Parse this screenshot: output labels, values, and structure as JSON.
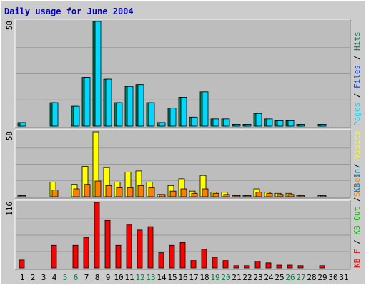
{
  "title": "Daily usage for June 2004",
  "colors": {
    "page_bg": "#cccccc",
    "plot_bg": "#bdbdbd",
    "title": "#0000cc",
    "hits": "#00805c",
    "files": "#0040ff",
    "pages": "#00d8ff",
    "visits": "#ffff00",
    "sites": "#ff8000",
    "kb_in": "#0080c0",
    "kb_out": "#00c000",
    "kb_f": "#ff0000",
    "weekend_day": "#008040",
    "weekday": "#000000"
  },
  "chart_data": [
    {
      "type": "bar",
      "panel": "top",
      "ymax_label": "58",
      "legend": [
        {
          "key": "pages",
          "text": "Pages"
        },
        {
          "key": "sep",
          "text": " / "
        },
        {
          "key": "files",
          "text": "Files"
        },
        {
          "key": "sep",
          "text": " / "
        },
        {
          "key": "hits",
          "text": "Hits"
        }
      ],
      "ylim": [
        0,
        58
      ],
      "series": [
        {
          "name": "Hits",
          "values": [
            2,
            0,
            0,
            13,
            0,
            11,
            27,
            58,
            26,
            13,
            22,
            23,
            13,
            2,
            10,
            16,
            5,
            19,
            4,
            4,
            1,
            1,
            7,
            4,
            3,
            3,
            1,
            0,
            1,
            0
          ]
        },
        {
          "name": "Files",
          "values": [
            2,
            0,
            0,
            13,
            0,
            11,
            27,
            58,
            26,
            13,
            22,
            23,
            13,
            2,
            10,
            16,
            5,
            19,
            4,
            4,
            1,
            1,
            7,
            4,
            3,
            3,
            1,
            0,
            1,
            0
          ]
        }
      ]
    },
    {
      "type": "bar",
      "panel": "middle",
      "ymax_label": "58",
      "legend": [
        {
          "key": "sites",
          "text": "Sites"
        },
        {
          "key": "sep",
          "text": " / "
        },
        {
          "key": "visits",
          "text": "Visits"
        }
      ],
      "ylim": [
        0,
        58
      ],
      "series": [
        {
          "name": "Visits",
          "values": [
            1,
            0,
            0,
            13,
            0,
            11,
            27,
            58,
            26,
            13,
            22,
            23,
            13,
            2,
            10,
            16,
            5,
            19,
            4,
            4,
            1,
            1,
            7,
            4,
            3,
            3,
            1,
            0,
            1,
            0
          ]
        },
        {
          "name": "Sites",
          "values": [
            1,
            0,
            0,
            6,
            0,
            7,
            11,
            14,
            10,
            8,
            8,
            10,
            8,
            2,
            5,
            7,
            3,
            7,
            3,
            2,
            1,
            1,
            4,
            3,
            2,
            2,
            1,
            0,
            1,
            0
          ]
        }
      ]
    },
    {
      "type": "bar",
      "panel": "bottom",
      "ymax_label": "116",
      "legend": [
        {
          "key": "kb_f",
          "text": "KB F"
        },
        {
          "key": "sep",
          "text": " / "
        },
        {
          "key": "kb_out",
          "text": "KB Out"
        },
        {
          "key": "sep",
          "text": " / "
        },
        {
          "key": "kb_in",
          "text": "KB In"
        }
      ],
      "ylim": [
        0,
        116
      ],
      "series": [
        {
          "name": "KB F",
          "values": [
            14,
            0,
            0,
            40,
            0,
            40,
            54,
            116,
            84,
            40,
            76,
            67,
            73,
            27,
            40,
            45,
            13,
            33,
            19,
            13,
            4,
            4,
            12,
            9,
            5,
            5,
            4,
            0,
            4,
            0
          ]
        }
      ]
    }
  ],
  "days": [
    {
      "label": "1",
      "weekend": false
    },
    {
      "label": "2",
      "weekend": false
    },
    {
      "label": "3",
      "weekend": false
    },
    {
      "label": "4",
      "weekend": false
    },
    {
      "label": "5",
      "weekend": true
    },
    {
      "label": "6",
      "weekend": true
    },
    {
      "label": "7",
      "weekend": false
    },
    {
      "label": "8",
      "weekend": false
    },
    {
      "label": "9",
      "weekend": false
    },
    {
      "label": "10",
      "weekend": false
    },
    {
      "label": "11",
      "weekend": false
    },
    {
      "label": "12",
      "weekend": true
    },
    {
      "label": "13",
      "weekend": true
    },
    {
      "label": "14",
      "weekend": false
    },
    {
      "label": "15",
      "weekend": false
    },
    {
      "label": "16",
      "weekend": false
    },
    {
      "label": "17",
      "weekend": false
    },
    {
      "label": "18",
      "weekend": false
    },
    {
      "label": "19",
      "weekend": true
    },
    {
      "label": "20",
      "weekend": true
    },
    {
      "label": "21",
      "weekend": false
    },
    {
      "label": "22",
      "weekend": false
    },
    {
      "label": "23",
      "weekend": false
    },
    {
      "label": "24",
      "weekend": false
    },
    {
      "label": "25",
      "weekend": false
    },
    {
      "label": "26",
      "weekend": true
    },
    {
      "label": "27",
      "weekend": true
    },
    {
      "label": "28",
      "weekend": false
    },
    {
      "label": "29",
      "weekend": false
    },
    {
      "label": "30",
      "weekend": false
    },
    {
      "label": "31",
      "weekend": false
    }
  ]
}
